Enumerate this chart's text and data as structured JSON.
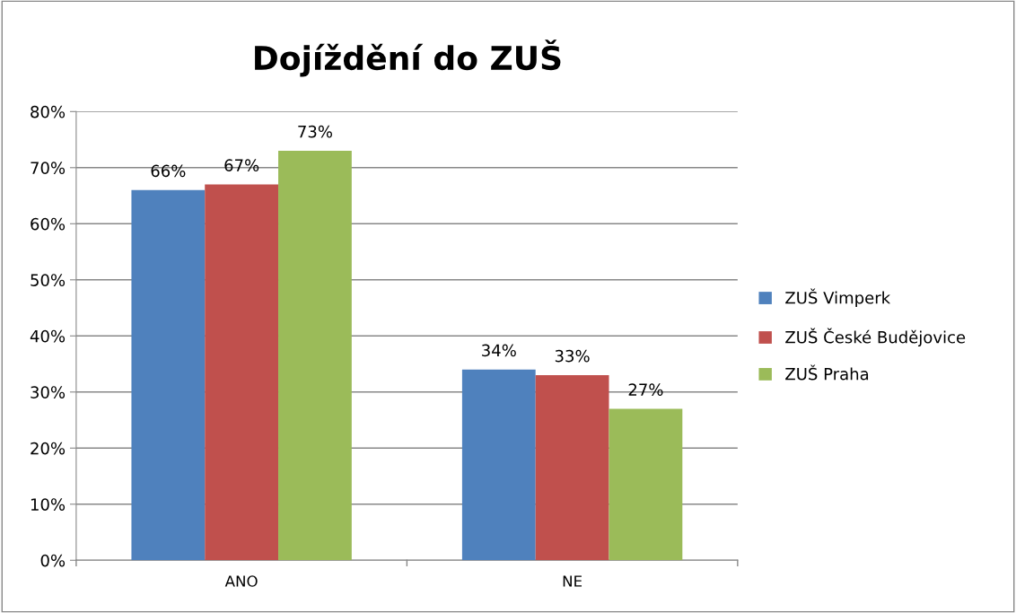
{
  "chart_data": {
    "type": "bar",
    "title": "Dojíždění do ZUŠ",
    "categories": [
      "ANO",
      "NE"
    ],
    "series": [
      {
        "name": "ZUŠ Vimperk",
        "color": "#4f81bd",
        "values": [
          66,
          34
        ],
        "value_labels": [
          "66%",
          "34%"
        ]
      },
      {
        "name": "ZUŠ České Budějovice",
        "color": "#c0504d",
        "values": [
          67,
          33
        ],
        "value_labels": [
          "67%",
          "33%"
        ]
      },
      {
        "name": "ZUŠ Praha",
        "color": "#9bbb59",
        "values": [
          73,
          27
        ],
        "value_labels": [
          "73%",
          "27%"
        ]
      }
    ],
    "ylim": [
      0,
      80
    ],
    "yticks": [
      {
        "value": 0,
        "label": "0%"
      },
      {
        "value": 10,
        "label": "10%"
      },
      {
        "value": 20,
        "label": "20%"
      },
      {
        "value": 30,
        "label": "30%"
      },
      {
        "value": 40,
        "label": "40%"
      },
      {
        "value": 50,
        "label": "50%"
      },
      {
        "value": 60,
        "label": "60%"
      },
      {
        "value": 70,
        "label": "70%"
      },
      {
        "value": 80,
        "label": "80%"
      }
    ],
    "grid": "y",
    "legend": "right"
  }
}
